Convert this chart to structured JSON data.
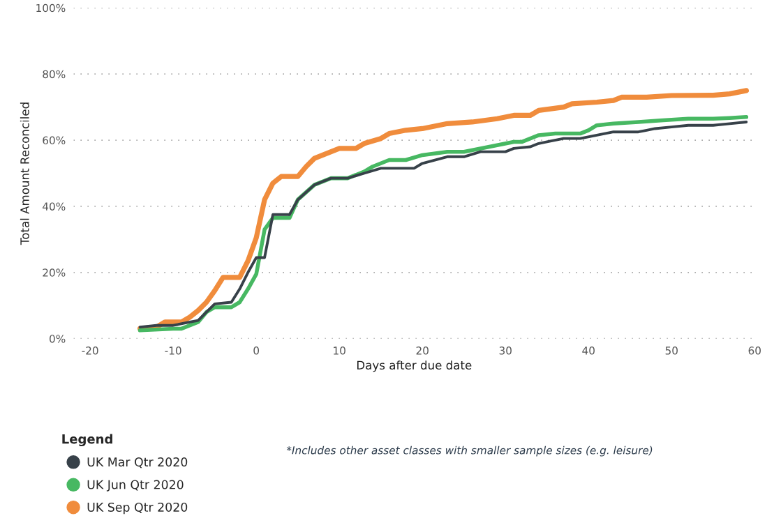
{
  "chart_data": {
    "type": "line",
    "xlabel": "Days after due date",
    "ylabel": "Total Amount Reconciled",
    "legend_title": "Legend",
    "xlim": [
      -22,
      60
    ],
    "xticks": [
      -20,
      -10,
      0,
      10,
      20,
      30,
      40,
      50,
      60
    ],
    "ylim": [
      0,
      100
    ],
    "yticks": [
      {
        "value": 0,
        "label": "0%"
      },
      {
        "value": 20,
        "label": "20%"
      },
      {
        "value": 40,
        "label": "40%"
      },
      {
        "value": 60,
        "label": "60%"
      },
      {
        "value": 80,
        "label": "80%"
      },
      {
        "value": 100,
        "label": "100%"
      }
    ],
    "grid": "y",
    "legend": "bottom left",
    "line_style": "solid",
    "annotations": [
      "*Includes other asset classes with smaller sample sizes (e.g. leisure)"
    ],
    "series": [
      {
        "name": "UK Mar Qtr 2020",
        "color": "#374149",
        "x": [
          -14,
          -12,
          -10,
          -8,
          -7,
          -6,
          -5,
          -3,
          -2,
          -1,
          0,
          1,
          2,
          4,
          5,
          7,
          9,
          11,
          13,
          15,
          19,
          20,
          23,
          25,
          27,
          30,
          31,
          33,
          34,
          35,
          37,
          39,
          41,
          43,
          46,
          47,
          48,
          50,
          52,
          55,
          57,
          59
        ],
        "values": [
          3.5,
          4,
          4,
          5,
          5.5,
          8,
          10.5,
          11,
          15,
          20,
          24.5,
          24.5,
          37.5,
          37.5,
          42,
          46.5,
          48.5,
          48.5,
          50,
          51.5,
          51.5,
          53,
          55,
          55,
          56.5,
          56.5,
          57.5,
          58,
          59,
          59.5,
          60.5,
          60.5,
          61.5,
          62.5,
          62.5,
          63,
          63.5,
          64,
          64.5,
          64.5,
          65,
          65.5
        ]
      },
      {
        "name": "UK Jun Qtr 2020",
        "color": "#47b862",
        "x": [
          -14,
          -10,
          -9,
          -7,
          -6,
          -5,
          -3,
          -2,
          -1,
          0,
          1,
          2,
          4,
          5,
          7,
          9,
          11,
          13,
          14,
          16,
          18,
          20,
          23,
          25,
          27,
          29,
          31,
          32,
          34,
          36,
          39,
          40,
          41,
          43,
          46,
          49,
          52,
          55,
          57,
          59
        ],
        "values": [
          2.5,
          3,
          3,
          5,
          8,
          9.5,
          9.5,
          11,
          15,
          19.5,
          33,
          36.5,
          36.5,
          42,
          46.5,
          48.5,
          48.5,
          50.5,
          52,
          54,
          54,
          55.5,
          56.5,
          56.5,
          57.5,
          58.5,
          59.5,
          59.5,
          61.5,
          62,
          62,
          63,
          64.5,
          65,
          65.5,
          66,
          66.5,
          66.5,
          66.7,
          67
        ]
      },
      {
        "name": "UK Sep Qtr 2020",
        "color": "#f08c3c",
        "x": [
          -14,
          -12,
          -11,
          -9,
          -8,
          -7,
          -6,
          -5,
          -4,
          -2,
          -1,
          0,
          1,
          2,
          3,
          5,
          6,
          7,
          9,
          10,
          12,
          13,
          15,
          16,
          18,
          20,
          23,
          26,
          29,
          31,
          33,
          34,
          37,
          38,
          41,
          43,
          44,
          47,
          50,
          55,
          57,
          59
        ],
        "values": [
          3,
          3.5,
          5,
          5,
          6.5,
          8.5,
          11,
          14.5,
          18.5,
          18.5,
          23.5,
          30.5,
          42,
          47,
          49,
          49,
          52,
          54.5,
          56.5,
          57.5,
          57.5,
          59,
          60.5,
          62,
          63,
          63.5,
          65,
          65.5,
          66.5,
          67.5,
          67.5,
          69,
          70,
          71,
          71.5,
          72,
          73,
          73,
          73.5,
          73.6,
          74,
          75
        ]
      }
    ]
  }
}
